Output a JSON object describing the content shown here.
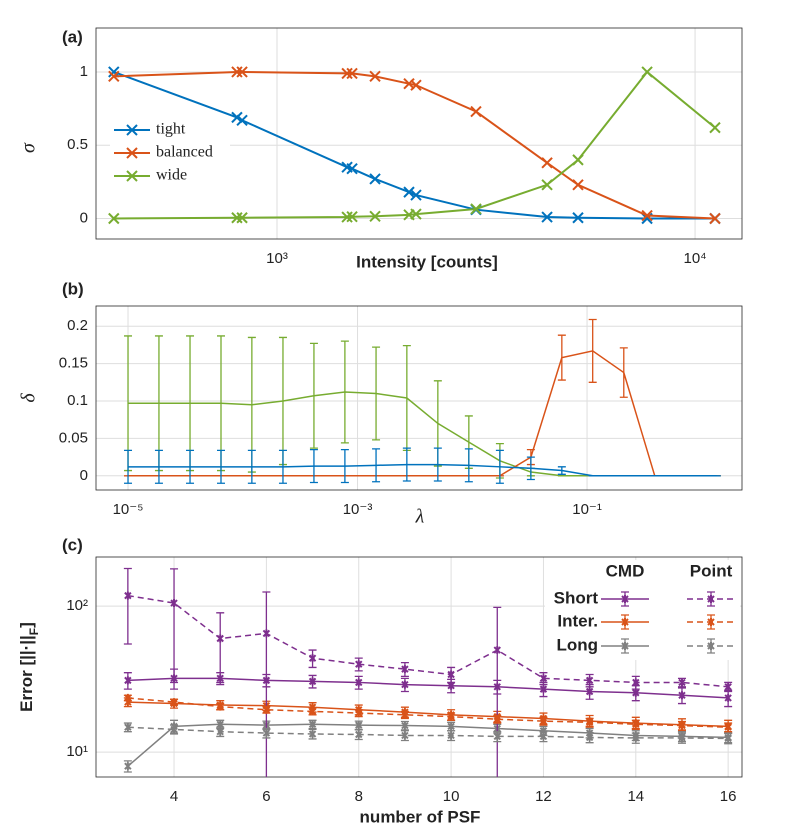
{
  "chart_data": [
    {
      "type": "line",
      "panel": "(a)",
      "xlabel": "Intensity [counts]",
      "ylabel": "σ",
      "xscale": "log",
      "xlim": [
        369,
        12950
      ],
      "ylim": [
        -0.14,
        1.3
      ],
      "xticks": [
        {
          "value": 1000,
          "label": "10³"
        },
        {
          "value": 10000,
          "label": "10⁴"
        }
      ],
      "yticks": [
        0,
        0.5,
        1
      ],
      "grid": true,
      "legend": "west",
      "marker": "x",
      "x": [
        407,
        802,
        825,
        1471,
        1512,
        1716,
        2069,
        2150,
        2992,
        4426,
        5248,
        7678,
        11160
      ],
      "series": [
        {
          "name": "tight",
          "color": "#0072bd",
          "values": [
            1,
            0.69,
            0.67,
            0.35,
            0.34,
            0.27,
            0.18,
            0.16,
            0.06,
            0.01,
            0.005,
            0,
            0
          ]
        },
        {
          "name": "balanced",
          "color": "#d95319",
          "values": [
            0.97,
            1,
            1,
            0.99,
            0.99,
            0.97,
            0.92,
            0.91,
            0.73,
            0.38,
            0.23,
            0.02,
            0
          ]
        },
        {
          "name": "wide",
          "color": "#77ac30",
          "values": [
            0,
            0.005,
            0.005,
            0.01,
            0.012,
            0.015,
            0.025,
            0.03,
            0.065,
            0.23,
            0.4,
            1,
            0.62
          ]
        }
      ]
    },
    {
      "type": "line",
      "panel": "(b)",
      "xlabel": "λ",
      "ylabel": "δ",
      "xscale": "log",
      "xlim": [
        5.26e-06,
        2.24
      ],
      "ylim": [
        -0.019,
        0.227
      ],
      "xticks": [
        {
          "value": 1e-05,
          "label": "10⁻⁵"
        },
        {
          "value": 0.001,
          "label": "10⁻³"
        },
        {
          "value": 0.1,
          "label": "10⁻¹"
        }
      ],
      "yticks": [
        0,
        0.05,
        0.1,
        0.15,
        0.2
      ],
      "grid": true,
      "marker": "none",
      "x": [
        1e-05,
        1.86e-05,
        3.47e-05,
        6.46e-05,
        0.00012,
        0.000224,
        0.000417,
        0.000776,
        0.00145,
        0.00269,
        0.00501,
        0.00933,
        0.0174,
        0.0324,
        0.0603,
        0.112,
        0.209,
        0.389,
        0.724,
        1.35
      ],
      "series": [
        {
          "color": "#77ac30",
          "values": [
            0.097,
            0.097,
            0.097,
            0.097,
            0.095,
            0.1,
            0.107,
            0.112,
            0.11,
            0.104,
            0.07,
            0.045,
            0.02,
            0.005,
            0,
            0,
            0,
            0,
            0,
            0
          ],
          "errors": [
            0.09,
            0.09,
            0.09,
            0.09,
            0.09,
            0.085,
            0.07,
            0.068,
            0.062,
            0.07,
            0.057,
            0.035,
            0.023,
            0.005,
            0,
            0,
            0,
            0,
            0,
            0
          ]
        },
        {
          "color": "#d95319",
          "values": [
            0,
            0,
            0,
            0,
            0,
            0,
            0,
            0,
            0,
            0,
            0,
            0,
            0,
            0.025,
            0.158,
            0.167,
            0.138,
            0,
            0,
            0
          ],
          "errors": [
            0,
            0,
            0,
            0,
            0,
            0,
            0,
            0,
            0,
            0,
            0,
            0,
            0,
            0.01,
            0.03,
            0.042,
            0.033,
            0,
            0,
            0
          ]
        },
        {
          "color": "#0072bd",
          "values": [
            0.012,
            0.012,
            0.012,
            0.012,
            0.012,
            0.012,
            0.013,
            0.013,
            0.014,
            0.015,
            0.015,
            0.014,
            0.012,
            0.01,
            0.007,
            0,
            0,
            0,
            0,
            0
          ],
          "errors": [
            0.022,
            0.022,
            0.022,
            0.022,
            0.022,
            0.022,
            0.022,
            0.022,
            0.022,
            0.022,
            0.022,
            0.022,
            0.022,
            0.015,
            0.005,
            0,
            0,
            0,
            0,
            0
          ]
        }
      ]
    },
    {
      "type": "line",
      "panel": "(c)",
      "xlabel": "number of PSF",
      "ylabel": [
        "Error [||·||",
        "F",
        "]"
      ],
      "yscale": "log",
      "xlim": [
        2.31,
        16.3
      ],
      "ylim": [
        6.75,
        217
      ],
      "xticks": [
        4,
        6,
        8,
        10,
        12,
        14,
        16
      ],
      "yticks": [
        {
          "value": 10,
          "label": "10¹"
        },
        {
          "value": 100,
          "label": "10²"
        }
      ],
      "grid": true,
      "marker": "asterisk",
      "legend": {
        "columns": [
          "CMD",
          "Point"
        ],
        "rows": [
          "Short",
          "Inter.",
          "Long"
        ]
      },
      "x": [
        3,
        4,
        5,
        6,
        7,
        8,
        9,
        10,
        11,
        12,
        13,
        14,
        15,
        16
      ],
      "series": [
        {
          "color": "#7e2f8e",
          "dashed": false,
          "values": [
            31,
            32,
            32,
            31,
            30.5,
            30,
            29,
            28.5,
            28,
            27,
            26,
            25.5,
            24.5,
            23.5
          ],
          "errors": [
            4,
            5,
            3,
            3,
            3,
            3,
            3,
            3,
            3,
            3,
            3,
            3,
            3,
            3
          ]
        },
        {
          "color": "#d95319",
          "dashed": false,
          "values": [
            22,
            21.5,
            21,
            20.8,
            20.3,
            19.5,
            18.8,
            18,
            17.5,
            17,
            16.3,
            15.8,
            15.4,
            15
          ],
          "errors": [
            1.5,
            1.5,
            1.5,
            1.5,
            1.5,
            1.5,
            1.5,
            1.5,
            1.5,
            1.5,
            1.5,
            1.5,
            1.5,
            1.5
          ]
        },
        {
          "color": "#808080",
          "dashed": false,
          "values": [
            8,
            15,
            15.5,
            15.3,
            15.5,
            15.3,
            15.2,
            15,
            14.5,
            14,
            13.5,
            13,
            12.8,
            12.6
          ],
          "errors": [
            0.7,
            1.5,
            1,
            1,
            1,
            1,
            1,
            1,
            1,
            1,
            1,
            1,
            1,
            1
          ]
        },
        {
          "color": "#7e2f8e",
          "dashed": true,
          "values": [
            118,
            105,
            60,
            65,
            44,
            40,
            37,
            34,
            50,
            32,
            31,
            30,
            30,
            28
          ],
          "errors": [
            63,
            75,
            30,
            60,
            6,
            4,
            4,
            4,
            48,
            3,
            3,
            3,
            2,
            2
          ]
        },
        {
          "color": "#d95319",
          "dashed": true,
          "values": [
            23.5,
            22,
            20.5,
            19.5,
            19,
            18.5,
            18,
            17.5,
            16.8,
            16.3,
            16,
            15.5,
            15.2,
            14.8
          ],
          "errors": [
            1,
            1,
            1,
            1,
            1,
            1,
            1,
            1,
            1,
            1,
            1,
            1,
            1,
            1
          ]
        },
        {
          "color": "#808080",
          "dashed": true,
          "values": [
            14.8,
            14.3,
            13.8,
            13.5,
            13.3,
            13.2,
            13,
            13,
            12.8,
            12.8,
            12.6,
            12.5,
            12.5,
            12.4
          ],
          "errors": [
            1,
            1,
            1,
            1,
            1,
            1,
            1,
            1,
            1,
            1,
            1,
            1,
            1,
            1
          ]
        }
      ]
    }
  ]
}
